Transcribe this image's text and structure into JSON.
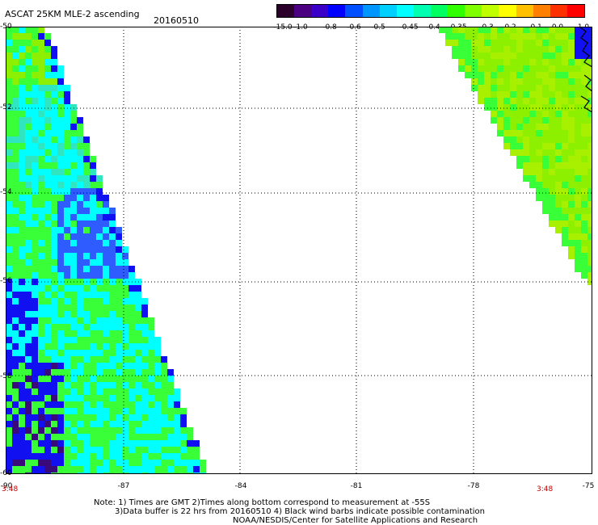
{
  "header": {
    "title": "ASCAT 25KM MLE-2 ascending",
    "date": "20160510"
  },
  "colorbar": {
    "colors": [
      "#2b002b",
      "#4b0082",
      "#3b00c8",
      "#0000ff",
      "#0050ff",
      "#0096ff",
      "#00d0ff",
      "#00ffff",
      "#00ffb0",
      "#00ff60",
      "#30ff00",
      "#80ff00",
      "#c0ff00",
      "#ffff00",
      "#ffc000",
      "#ff8000",
      "#ff3000",
      "#ff0000"
    ],
    "labels": [
      "-15.0",
      "-1.0",
      "-0.8",
      "-0.6",
      "-0.5",
      "-0.45",
      "-0.4",
      "-0.35",
      "-0.3",
      "-0.2",
      "-0.1",
      "0.0",
      "1.0"
    ]
  },
  "axes": {
    "lat_labels": [
      "-50",
      "-52",
      "-54",
      "-56",
      "-58",
      "-60"
    ],
    "lon_labels": [
      "-90",
      "-87",
      "-84",
      "-81",
      "-78",
      "-75"
    ],
    "left_time": "3:48",
    "right_time": "3:48"
  },
  "notes": {
    "line1": "Note: 1) Times are GMT 2)Times along bottom correspond to measurement at -55S",
    "line2": "3)Data buffer is 22 hrs from 20160510 4) Black wind barbs indicate possible contamination",
    "line3": "NOAA/NESDIS/Center for Satellite Applications and Research"
  },
  "map_colors": {
    "purple": "#3a0a7a",
    "blue": "#1010f0",
    "mid_blue": "#2e5cff",
    "cyan": "#00ffff",
    "aqua": "#30e6c0",
    "green": "#39ff39",
    "lime": "#8cf000",
    "yellowgreen": "#a8f000",
    "coast": "#000000",
    "grid": "#000000"
  }
}
